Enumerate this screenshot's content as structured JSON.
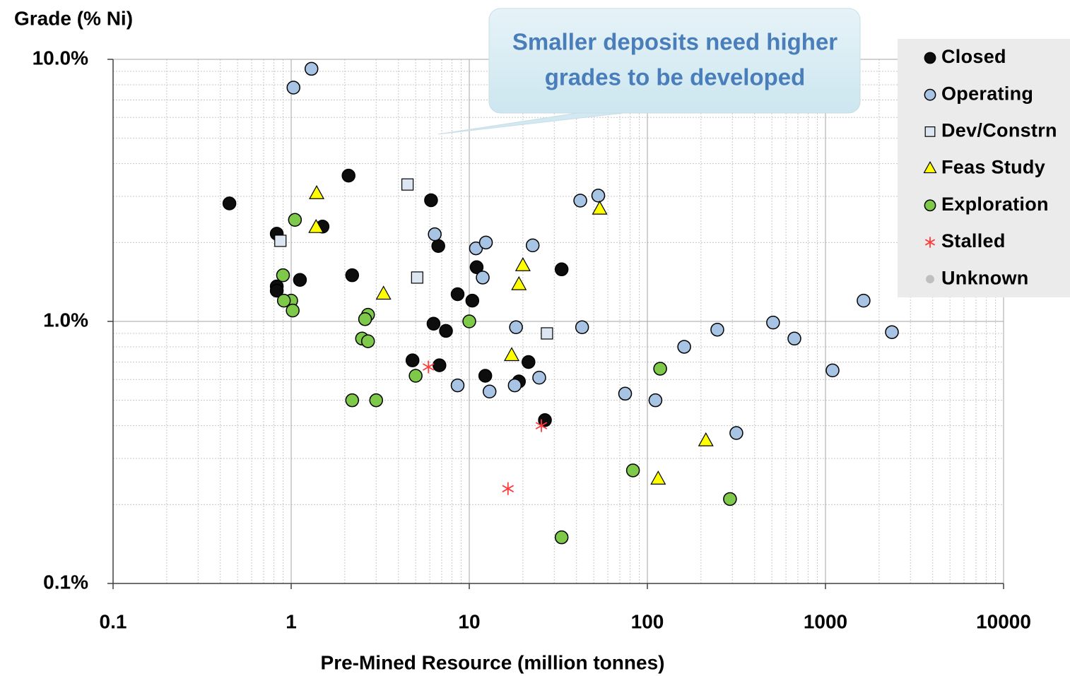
{
  "chart_data": {
    "type": "scatter",
    "xlabel": "Pre-Mined Resource (million tonnes)",
    "ylabel": "Grade (% Ni)",
    "annotation": [
      "Smaller deposits need higher",
      "grades to be developed"
    ],
    "xscale": "log",
    "yscale": "log",
    "xlim": [
      0.1,
      10000
    ],
    "ylim": [
      0.1,
      10
    ],
    "xticks": [
      0.1,
      1,
      10,
      100,
      1000,
      10000
    ],
    "yticks": [
      {
        "value": 10,
        "label": "10.0%"
      },
      {
        "value": 1,
        "label": "1.0%"
      },
      {
        "value": 0.1,
        "label": "0.1%"
      }
    ],
    "grid": true,
    "minor_grid": true,
    "legend": "upper right",
    "series": [
      {
        "name": "Closed",
        "color": "#0d0d0d",
        "marker": "circle",
        "x": [
          0.45,
          0.83,
          0.83,
          0.83,
          1.12,
          1.5,
          2.1,
          2.2,
          4.8,
          6.1,
          6.3,
          6.7,
          6.8,
          7.4,
          8.6,
          10.4,
          11.0,
          12.3,
          19,
          21.5,
          26.6,
          33
        ],
        "values": [
          2.82,
          2.16,
          1.36,
          1.31,
          1.44,
          2.3,
          3.6,
          1.5,
          0.71,
          2.9,
          0.98,
          1.94,
          0.68,
          0.92,
          1.27,
          1.2,
          1.61,
          0.62,
          0.59,
          0.7,
          0.42,
          1.58
        ]
      },
      {
        "name": "Operating",
        "color": "#a7c4e5",
        "marker": "circle",
        "x": [
          1.3,
          1.03,
          6.4,
          10.9,
          12.4,
          11.9,
          22.7,
          18.3,
          8.6,
          13.0,
          18,
          24.7,
          42,
          53,
          43,
          75,
          111,
          161,
          247,
          316,
          508,
          669,
          1096,
          1637,
          2361
        ],
        "values": [
          9.2,
          7.8,
          2.15,
          1.9,
          2.0,
          1.47,
          1.95,
          0.95,
          0.57,
          0.54,
          0.57,
          0.61,
          2.89,
          3.02,
          0.95,
          0.53,
          0.5,
          0.8,
          0.93,
          0.375,
          0.99,
          0.86,
          0.65,
          1.2,
          0.91
        ]
      },
      {
        "name": "Dev/Constrn",
        "color": "#dce6f2",
        "marker": "square",
        "x": [
          0.87,
          4.5,
          5.1,
          27.3
        ],
        "values": [
          2.03,
          3.33,
          1.47,
          0.9
        ]
      },
      {
        "name": "Feas Study",
        "color": "#ffff00",
        "marker": "triangle",
        "x": [
          1.39,
          1.38,
          3.3,
          20,
          19,
          17.3,
          54,
          213,
          115
        ],
        "values": [
          3.07,
          2.28,
          1.27,
          1.63,
          1.38,
          0.74,
          2.68,
          0.35,
          0.25
        ]
      },
      {
        "name": "Exploration",
        "color": "#7fc94a",
        "marker": "circle",
        "x": [
          1.05,
          0.9,
          1.0,
          0.91,
          1.02,
          2.7,
          2.6,
          2.5,
          2.7,
          2.2,
          3.0,
          5.0,
          10,
          118,
          83,
          291,
          33
        ],
        "values": [
          2.44,
          1.5,
          1.2,
          1.2,
          1.1,
          1.06,
          1.02,
          0.86,
          0.84,
          0.5,
          0.5,
          0.62,
          1.0,
          0.66,
          0.27,
          0.21,
          0.15
        ]
      },
      {
        "name": "Stalled",
        "color": "#ff3b3b",
        "marker": "star",
        "x": [
          5.9,
          25.4,
          16.5
        ],
        "values": [
          0.67,
          0.4,
          0.23
        ]
      },
      {
        "name": "Unknown",
        "color": "#bfbfbf",
        "marker": "dot",
        "x": [],
        "values": []
      }
    ]
  }
}
